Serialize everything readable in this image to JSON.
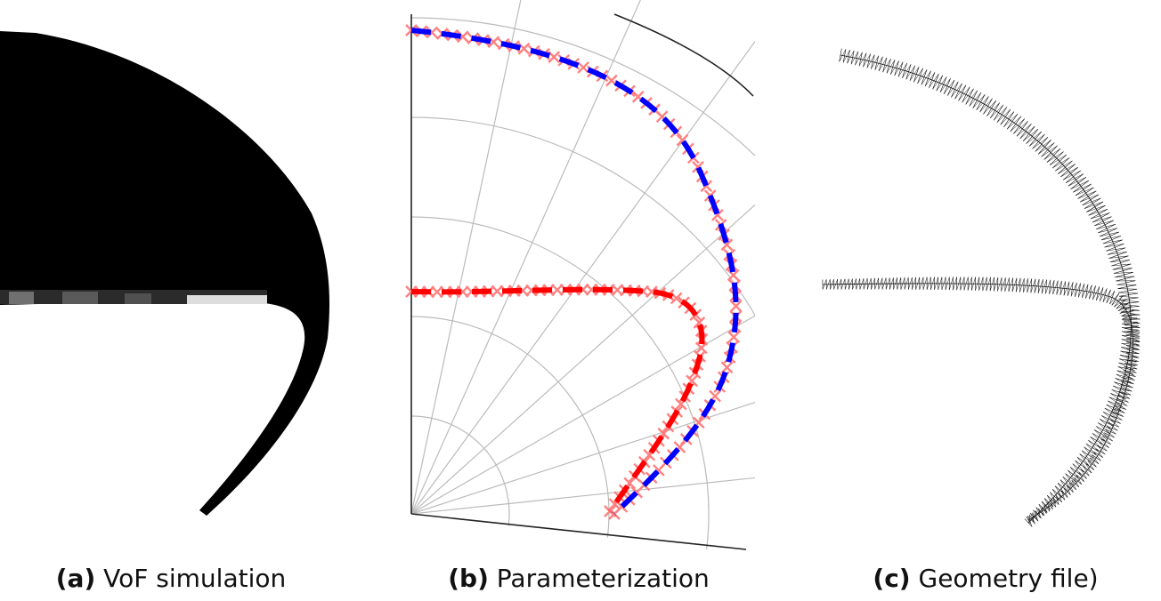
{
  "figure": {
    "panels": [
      {
        "id": "a",
        "label": "(a)",
        "caption": "VoF simulation"
      },
      {
        "id": "b",
        "label": "(b)",
        "caption": "Parameterization"
      },
      {
        "id": "c",
        "label": "(c)",
        "caption": "Geometry file)"
      }
    ],
    "colors": {
      "fluid": "#000000",
      "outer_curve": "#0000ff",
      "inner_curve": "#ff0000",
      "sample_markers": "#ff8080",
      "polar_grid": "#bbbbbb",
      "geometry_mesh": "#111111"
    }
  }
}
